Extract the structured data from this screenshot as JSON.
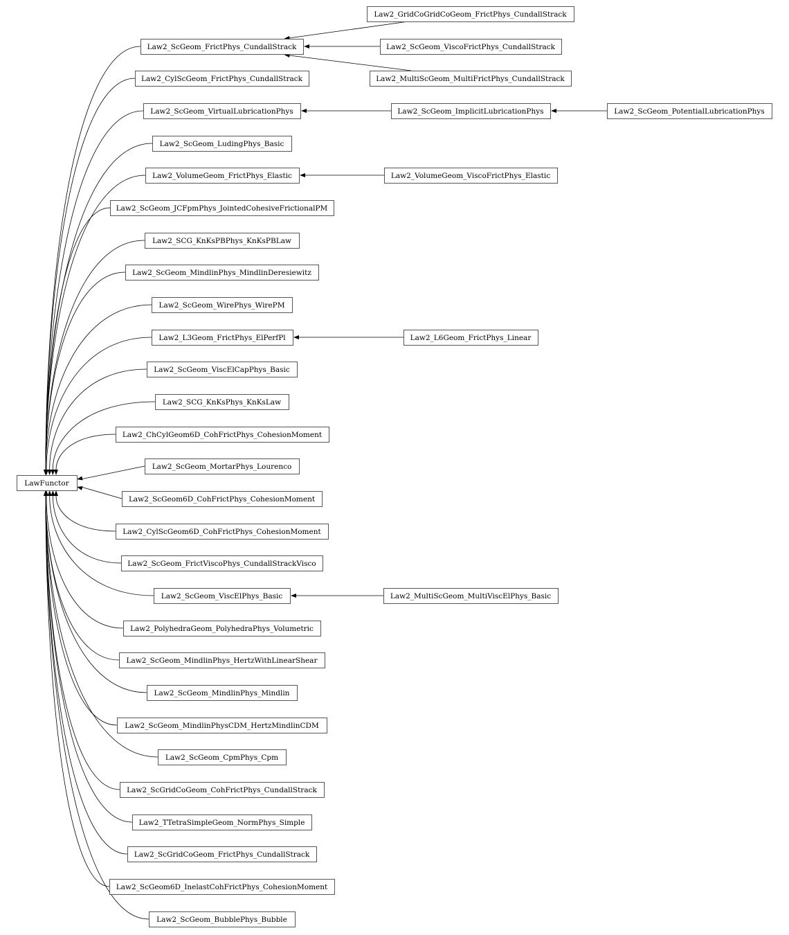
{
  "diagram": {
    "root": "LawFunctor",
    "children_of_root": [
      "Law2_ScGeom_FrictPhys_CundallStrack",
      "Law2_CylScGeom_FrictPhys_CundallStrack",
      "Law2_ScGeom_VirtualLubricationPhys",
      "Law2_ScGeom_LudingPhys_Basic",
      "Law2_VolumeGeom_FrictPhys_Elastic",
      "Law2_ScGeom_JCFpmPhys_JointedCohesiveFrictionalPM",
      "Law2_SCG_KnKsPBPhys_KnKsPBLaw",
      "Law2_ScGeom_MindlinPhys_MindlinDeresiewitz",
      "Law2_ScGeom_WirePhys_WirePM",
      "Law2_L3Geom_FrictPhys_ElPerfPl",
      "Law2_ScGeom_ViscElCapPhys_Basic",
      "Law2_SCG_KnKsPhys_KnKsLaw",
      "Law2_ChCylGeom6D_CohFrictPhys_CohesionMoment",
      "Law2_ScGeom_MortarPhys_Lourenco",
      "Law2_ScGeom6D_CohFrictPhys_CohesionMoment",
      "Law2_CylScGeom6D_CohFrictPhys_CohesionMoment",
      "Law2_ScGeom_FrictViscoPhys_CundallStrackVisco",
      "Law2_ScGeom_ViscElPhys_Basic",
      "Law2_PolyhedraGeom_PolyhedraPhys_Volumetric",
      "Law2_ScGeom_MindlinPhys_HertzWithLinearShear",
      "Law2_ScGeom_MindlinPhys_Mindlin",
      "Law2_ScGeom_MindlinPhysCDM_HertzMindlinCDM",
      "Law2_ScGeom_CpmPhys_Cpm",
      "Law2_ScGridCoGeom_CohFrictPhys_CundallStrack",
      "Law2_TTetraSimpleGeom_NormPhys_Simple",
      "Law2_ScGridCoGeom_FrictPhys_CundallStrack",
      "Law2_ScGeom6D_InelastCohFrictPhys_CohesionMoment",
      "Law2_ScGeom_BubblePhys_Bubble"
    ],
    "derived": [
      {
        "name": "Law2_GridCoGridCoGeom_FrictPhys_CundallStrack",
        "parent": "Law2_ScGeom_FrictPhys_CundallStrack"
      },
      {
        "name": "Law2_ScGeom_ViscoFrictPhys_CundallStrack",
        "parent": "Law2_ScGeom_FrictPhys_CundallStrack"
      },
      {
        "name": "Law2_MultiScGeom_MultiFrictPhys_CundallStrack",
        "parent": "Law2_ScGeom_FrictPhys_CundallStrack"
      },
      {
        "name": "Law2_ScGeom_ImplicitLubricationPhys",
        "parent": "Law2_ScGeom_VirtualLubricationPhys"
      },
      {
        "name": "Law2_ScGeom_PotentialLubricationPhys",
        "parent": "Law2_ScGeom_ImplicitLubricationPhys"
      },
      {
        "name": "Law2_VolumeGeom_ViscoFrictPhys_Elastic",
        "parent": "Law2_VolumeGeom_FrictPhys_Elastic"
      },
      {
        "name": "Law2_L6Geom_FrictPhys_Linear",
        "parent": "Law2_L3Geom_FrictPhys_ElPerfPl"
      },
      {
        "name": "Law2_MultiScGeom_MultiViscElPhys_Basic",
        "parent": "Law2_ScGeom_ViscElPhys_Basic"
      }
    ]
  }
}
